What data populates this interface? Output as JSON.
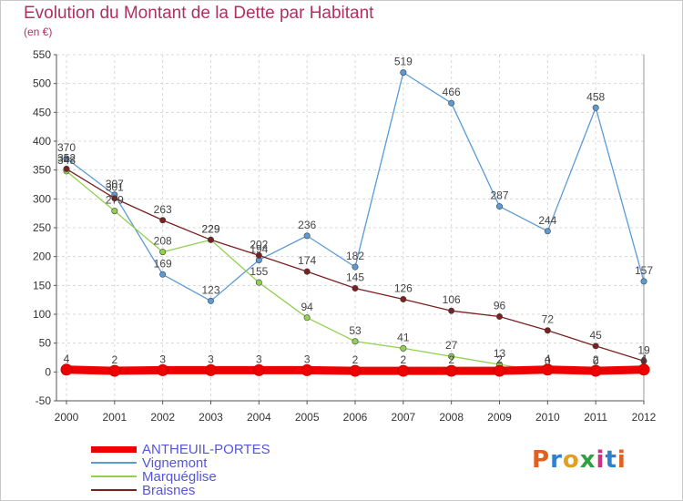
{
  "chart_data": {
    "type": "line",
    "title": "Evolution du Montant de la Dette par Habitant",
    "subtitle": "(en €)",
    "x": [
      "2000",
      "2001",
      "2002",
      "2003",
      "2004",
      "2005",
      "2006",
      "2007",
      "2008",
      "2009",
      "2010",
      "2011",
      "2012"
    ],
    "ylim": [
      -50,
      550
    ],
    "yticks": [
      -50,
      0,
      50,
      100,
      150,
      200,
      250,
      300,
      350,
      400,
      450,
      500,
      550
    ],
    "grid": true,
    "series": [
      {
        "name": "ANTHEUIL-PORTES",
        "color": "#ee0000",
        "values": [
          4,
          2,
          3,
          3,
          3,
          3,
          2,
          2,
          2,
          2,
          4,
          2,
          4
        ]
      },
      {
        "name": "Vignemont",
        "color": "#5b9bd5",
        "values": [
          370,
          307,
          169,
          123,
          194,
          236,
          182,
          519,
          466,
          287,
          244,
          458,
          157
        ]
      },
      {
        "name": "Marquéglise",
        "color": "#92d050",
        "values": [
          348,
          279,
          208,
          229,
          155,
          94,
          53,
          41,
          27,
          13,
          0,
          0,
          0
        ]
      },
      {
        "name": "Braisnes",
        "color": "#7b2020",
        "values": [
          352,
          301,
          263,
          229,
          202,
          174,
          145,
          126,
          106,
          96,
          72,
          45,
          19
        ]
      }
    ]
  },
  "logo": {
    "text": "Proxiti",
    "colors": [
      "#e06020",
      "#3080d0",
      "#e0a020",
      "#30a040",
      "#d03080",
      "#3080d0",
      "#e06020"
    ]
  }
}
